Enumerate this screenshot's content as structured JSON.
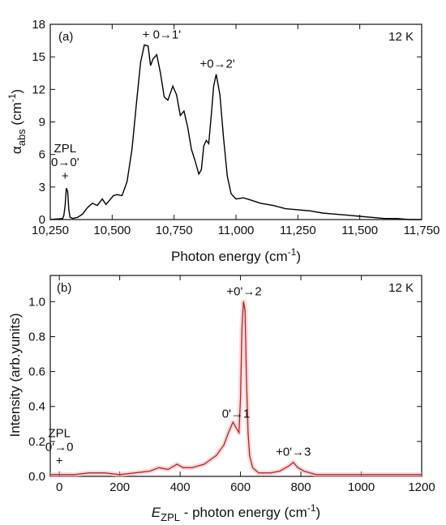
{
  "chart_data": [
    {
      "type": "line",
      "panel_label": "(a)",
      "temperature_label": "12 K",
      "xlabel": "Photon energy (cm",
      "xlabel_sup": "-1",
      "xlabel_end": ")",
      "ylabel_main": "α",
      "ylabel_sub": "abs",
      "ylabel_unit": " (cm",
      "ylabel_sup": "-1",
      "ylabel_end": ")",
      "xlim": [
        10250,
        11750
      ],
      "ylim": [
        0,
        18
      ],
      "xticks": [
        10250,
        10500,
        10750,
        11000,
        11250,
        11500,
        11750
      ],
      "xtick_labels": [
        "10,250",
        "10,500",
        "10,750",
        "11,000",
        "11,250",
        "11,500",
        "11,750"
      ],
      "yticks": [
        0,
        3,
        6,
        9,
        12,
        15,
        18
      ],
      "ytick_labels": [
        "0",
        "3",
        "6",
        "9",
        "12",
        "15",
        "18"
      ],
      "color": "#000000",
      "series": [
        {
          "x": [
            10250,
            10300,
            10305,
            10310,
            10315,
            10320,
            10325,
            10330,
            10340,
            10360,
            10380,
            10400,
            10420,
            10440,
            10460,
            10475,
            10490,
            10505,
            10520,
            10540,
            10560,
            10580,
            10600,
            10615,
            10630,
            10645,
            10655,
            10665,
            10680,
            10695,
            10710,
            10725,
            10745,
            10760,
            10775,
            10790,
            10805,
            10820,
            10835,
            10850,
            10860,
            10870,
            10880,
            10890,
            10900,
            10910,
            10920,
            10935,
            10950,
            10965,
            10980,
            11000,
            11030,
            11060,
            11100,
            11150,
            11200,
            11250,
            11300,
            11350,
            11400,
            11450,
            11500,
            11550,
            11600,
            11650,
            11700,
            11750
          ],
          "y": [
            0,
            0.1,
            0.4,
            1.3,
            2.9,
            2.6,
            0.9,
            0.2,
            0.1,
            0.2,
            0.5,
            1.1,
            1.5,
            1.3,
            1.9,
            1.4,
            1.8,
            2.2,
            2.3,
            2.2,
            3.5,
            6.5,
            11.2,
            14.5,
            16.1,
            16.0,
            14.2,
            14.8,
            15.2,
            13.5,
            11.3,
            11.0,
            12.3,
            11.5,
            9.6,
            10.0,
            8.5,
            6.5,
            5.4,
            4.2,
            4.6,
            6.8,
            7.3,
            7.0,
            9.6,
            12.3,
            13.4,
            11.5,
            7.5,
            4.0,
            2.4,
            1.9,
            2.0,
            1.8,
            1.5,
            1.3,
            1.0,
            0.9,
            0.8,
            0.6,
            0.5,
            0.4,
            0.3,
            0.2,
            0.1,
            0.1,
            0.0,
            0.0
          ]
        }
      ],
      "annotations": [
        {
          "lines": [
            "ZPL",
            "0→0'",
            "+"
          ],
          "x": 10310,
          "y": 2.9
        },
        {
          "lines": [
            "+ 0→1'"
          ],
          "x": 10700,
          "y": 16.1
        },
        {
          "lines": [
            "+0→2'"
          ],
          "x": 10925,
          "y": 13.4
        }
      ]
    },
    {
      "type": "line",
      "panel_label": "(b)",
      "temperature_label": "12 K",
      "xlabel_italic": "E",
      "xlabel_sub": "ZPL",
      "xlabel": " - photon energy (cm",
      "xlabel_sup": "-1",
      "xlabel_end": ")",
      "ylabel": "Intensity (arb.yunits)",
      "xlim": [
        -30,
        1200
      ],
      "ylim": [
        0,
        1.15
      ],
      "xticks": [
        0,
        200,
        400,
        600,
        800,
        1000,
        1200
      ],
      "xtick_labels": [
        "0",
        "200",
        "400",
        "600",
        "800",
        "1000",
        "1200"
      ],
      "yticks": [
        0.0,
        0.2,
        0.4,
        0.6,
        0.8,
        1.0
      ],
      "ytick_labels": [
        "0.0",
        "0.2",
        "0.4",
        "0.6",
        "0.8",
        "1.0"
      ],
      "color": "#b02a1a",
      "band_color": "#f4b8c8",
      "series": [
        {
          "x": [
            -30,
            0,
            50,
            100,
            150,
            200,
            250,
            300,
            330,
            360,
            390,
            410,
            440,
            480,
            520,
            545,
            560,
            575,
            585,
            595,
            600,
            605,
            610,
            615,
            620,
            625,
            630,
            640,
            660,
            700,
            730,
            760,
            775,
            790,
            810,
            850,
            900,
            1000,
            1100,
            1200
          ],
          "y": [
            0.01,
            0.01,
            0.01,
            0.02,
            0.02,
            0.01,
            0.02,
            0.03,
            0.05,
            0.04,
            0.07,
            0.05,
            0.05,
            0.07,
            0.12,
            0.18,
            0.25,
            0.31,
            0.28,
            0.25,
            0.45,
            0.85,
            1.0,
            0.95,
            0.55,
            0.25,
            0.12,
            0.05,
            0.02,
            0.02,
            0.03,
            0.06,
            0.08,
            0.05,
            0.03,
            0.01,
            0.01,
            0.01,
            0.01,
            0.01
          ]
        }
      ],
      "annotations": [
        {
          "lines": [
            "ZPL",
            "0'→0",
            "+"
          ],
          "x": 0,
          "y": 0.02
        },
        {
          "lines": [
            "0'→1"
          ],
          "x": 585,
          "y": 0.3
        },
        {
          "lines": [
            "+0'→2"
          ],
          "x": 612,
          "y": 1.0
        },
        {
          "lines": [
            "+0'→3"
          ],
          "x": 775,
          "y": 0.08
        }
      ]
    }
  ]
}
